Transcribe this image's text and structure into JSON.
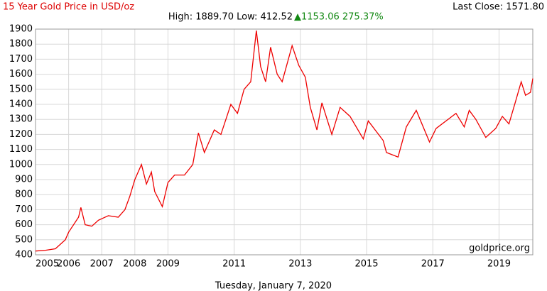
{
  "chart_data": {
    "type": "line",
    "title": "15 Year Gold Price in USD/oz",
    "subtitle": "High: 1889.70 Low: 412.52",
    "change": "▲1153.06 275.37%",
    "last_close": "Last Close: 1571.80",
    "watermark": "goldprice.org",
    "xlabel": "Tuesday, January 7, 2020",
    "x": [
      2005.0,
      2005.3,
      2005.6,
      2005.9,
      2006.0,
      2006.3,
      2006.37,
      2006.5,
      2006.7,
      2006.9,
      2007.2,
      2007.5,
      2007.7,
      2007.85,
      2008.0,
      2008.2,
      2008.35,
      2008.5,
      2008.6,
      2008.83,
      2009.0,
      2009.2,
      2009.5,
      2009.75,
      2009.92,
      2010.1,
      2010.4,
      2010.6,
      2010.9,
      2011.1,
      2011.3,
      2011.5,
      2011.67,
      2011.8,
      2011.95,
      2012.1,
      2012.3,
      2012.45,
      2012.75,
      2012.95,
      2013.15,
      2013.3,
      2013.5,
      2013.65,
      2013.95,
      2014.2,
      2014.5,
      2014.9,
      2015.05,
      2015.5,
      2015.6,
      2015.95,
      2016.2,
      2016.5,
      2016.9,
      2017.1,
      2017.7,
      2017.95,
      2018.1,
      2018.3,
      2018.6,
      2018.9,
      2019.1,
      2019.3,
      2019.5,
      2019.67,
      2019.8,
      2019.95,
      2020.02
    ],
    "series": [
      {
        "name": "Gold",
        "color": "#ee0000",
        "values": [
          425,
          430,
          440,
          500,
          550,
          650,
          715,
          600,
          590,
          630,
          660,
          650,
          700,
          790,
          900,
          1000,
          870,
          950,
          820,
          720,
          880,
          930,
          930,
          1000,
          1210,
          1080,
          1230,
          1200,
          1400,
          1340,
          1500,
          1550,
          1890,
          1650,
          1550,
          1780,
          1600,
          1550,
          1790,
          1660,
          1580,
          1380,
          1230,
          1410,
          1200,
          1380,
          1320,
          1170,
          1290,
          1160,
          1080,
          1050,
          1250,
          1360,
          1150,
          1240,
          1340,
          1250,
          1360,
          1300,
          1180,
          1240,
          1320,
          1270,
          1420,
          1550,
          1460,
          1480,
          1571.8
        ]
      }
    ],
    "xlim": [
      2005.0,
      2020.02
    ],
    "xticks": [
      2005,
      2006,
      2007,
      2008,
      2009,
      2011,
      2013,
      2015,
      2017,
      2019
    ],
    "ylim": [
      400,
      1900
    ],
    "yticks": [
      400,
      500,
      600,
      700,
      800,
      900,
      1000,
      1100,
      1200,
      1300,
      1400,
      1500,
      1600,
      1700,
      1800,
      1900
    ],
    "grid": true
  }
}
